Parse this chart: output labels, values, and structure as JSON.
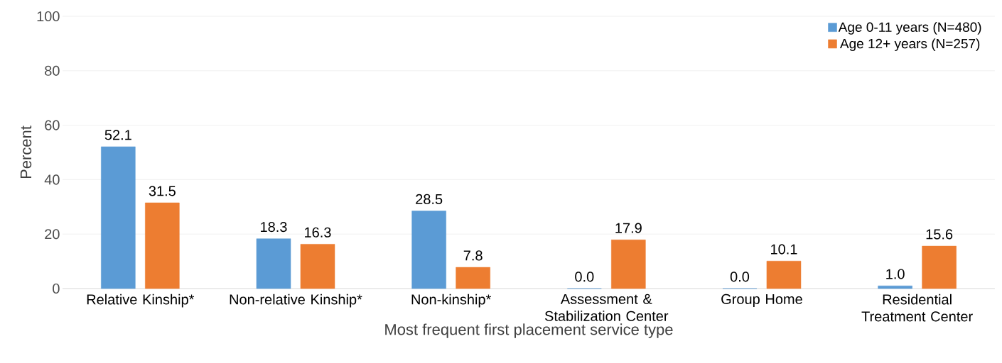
{
  "chart_data": {
    "type": "bar",
    "xlabel": "Most frequent first placement service type",
    "ylabel": "Percent",
    "categories": [
      "Relative Kinship*",
      "Non-relative Kinship*",
      "Non-kinship*",
      "Assessment & Stabilization Center",
      "Group Home",
      "Residential Treatment Center"
    ],
    "series": [
      {
        "name": "Age 0-11 years (N=480)",
        "color": "#5b9bd5",
        "values": [
          52.1,
          18.3,
          28.5,
          0.0,
          0.0,
          1.0
        ],
        "value_labels": [
          "52.1",
          "18.3",
          "28.5",
          "0.0",
          "0.0",
          "1.0"
        ]
      },
      {
        "name": "Age 12+ years (N=257)",
        "color": "#ed7d31",
        "values": [
          31.5,
          16.3,
          7.8,
          17.9,
          10.1,
          15.6
        ],
        "value_labels": [
          "31.5",
          "16.3",
          "7.8",
          "17.9",
          "10.1",
          "15.6"
        ]
      }
    ],
    "ylim": [
      0,
      100
    ],
    "yticks": [
      0,
      20,
      40,
      60,
      80,
      100
    ],
    "grid": "y",
    "legend": "top right"
  }
}
